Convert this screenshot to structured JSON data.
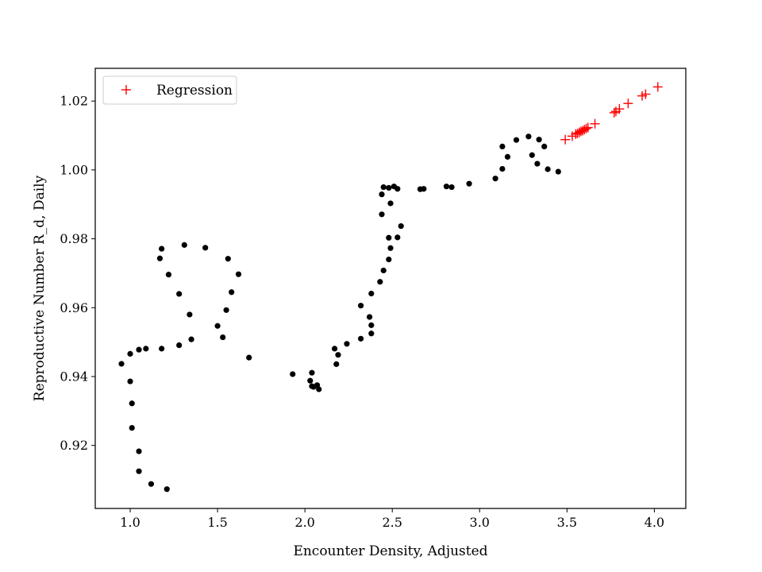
{
  "chart_data": {
    "type": "scatter",
    "title": "",
    "xlabel": "Encounter Density, Adjusted",
    "ylabel": "Reproductive Number R_d, Daily",
    "xlim": [
      0.8,
      4.18
    ],
    "ylim": [
      0.9017,
      1.0295
    ],
    "xticks": [
      1.0,
      1.5,
      2.0,
      2.5,
      3.0,
      3.5,
      4.0
    ],
    "xtick_labels": [
      "1.0",
      "1.5",
      "2.0",
      "2.5",
      "3.0",
      "3.5",
      "4.0"
    ],
    "yticks": [
      0.92,
      0.94,
      0.96,
      0.98,
      1.0,
      1.02
    ],
    "ytick_labels": [
      "0.92",
      "0.94",
      "0.96",
      "0.98",
      "1.00",
      "1.02"
    ],
    "grid": false,
    "legend_position": "top-left",
    "series": [
      {
        "marker": "dot",
        "color": "#000000",
        "x": [
          0.95,
          1.0,
          1.09,
          1.05,
          1.18,
          1.28,
          1.35,
          1.0,
          1.01,
          1.01,
          1.05,
          1.05,
          1.12,
          1.21,
          1.17,
          1.18,
          1.22,
          1.28,
          1.34,
          1.31,
          1.43,
          1.5,
          1.53,
          1.55,
          1.58,
          1.56,
          1.62,
          1.68,
          1.93,
          2.03,
          2.04,
          2.05,
          2.07,
          2.08,
          2.04,
          2.18,
          2.19,
          2.17,
          2.24,
          2.32,
          2.38,
          2.38,
          2.37,
          2.32,
          2.38,
          2.43,
          2.45,
          2.48,
          2.49,
          2.48,
          2.53,
          2.55,
          2.44,
          2.49,
          2.44,
          2.45,
          2.48,
          2.51,
          2.53,
          2.66,
          2.68,
          2.81,
          2.84,
          2.94,
          3.09,
          3.13,
          3.13,
          3.16,
          3.21,
          3.28,
          3.3,
          3.33,
          3.34,
          3.37,
          3.39,
          3.45
        ],
        "y": [
          0.9437,
          0.9466,
          0.9481,
          0.9478,
          0.9481,
          0.9491,
          0.9508,
          0.9386,
          0.9322,
          0.9251,
          0.9183,
          0.9125,
          0.9088,
          0.9073,
          0.9743,
          0.9771,
          0.9696,
          0.964,
          0.958,
          0.9782,
          0.9774,
          0.9547,
          0.9514,
          0.9593,
          0.9645,
          0.9742,
          0.9697,
          0.9455,
          0.9407,
          0.9388,
          0.9411,
          0.937,
          0.9375,
          0.9363,
          0.9372,
          0.9436,
          0.9463,
          0.9481,
          0.9495,
          0.951,
          0.9525,
          0.9549,
          0.9573,
          0.9606,
          0.9641,
          0.9675,
          0.9708,
          0.974,
          0.9773,
          0.9803,
          0.9804,
          0.9837,
          0.9871,
          0.9903,
          0.9929,
          0.995,
          0.9948,
          0.9952,
          0.9945,
          0.9944,
          0.9945,
          0.9952,
          0.995,
          0.996,
          0.9975,
          1.0003,
          1.0068,
          1.0038,
          1.0087,
          1.0097,
          1.0043,
          1.0018,
          1.0088,
          1.0068,
          1.0002,
          0.9995
        ]
      },
      {
        "name": "Regression",
        "marker": "plus",
        "color": "#ff0000",
        "x": [
          3.49,
          3.53,
          3.55,
          3.56,
          3.57,
          3.58,
          3.59,
          3.6,
          3.61,
          3.62,
          3.66,
          3.77,
          3.78,
          3.8,
          3.85,
          3.93,
          3.95,
          4.02
        ],
        "y": [
          1.0088,
          1.0098,
          1.0104,
          1.0106,
          1.0109,
          1.0112,
          1.0114,
          1.0117,
          1.012,
          1.0123,
          1.0134,
          1.0166,
          1.017,
          1.0177,
          1.0193,
          1.0215,
          1.022,
          1.0241
        ]
      }
    ]
  }
}
